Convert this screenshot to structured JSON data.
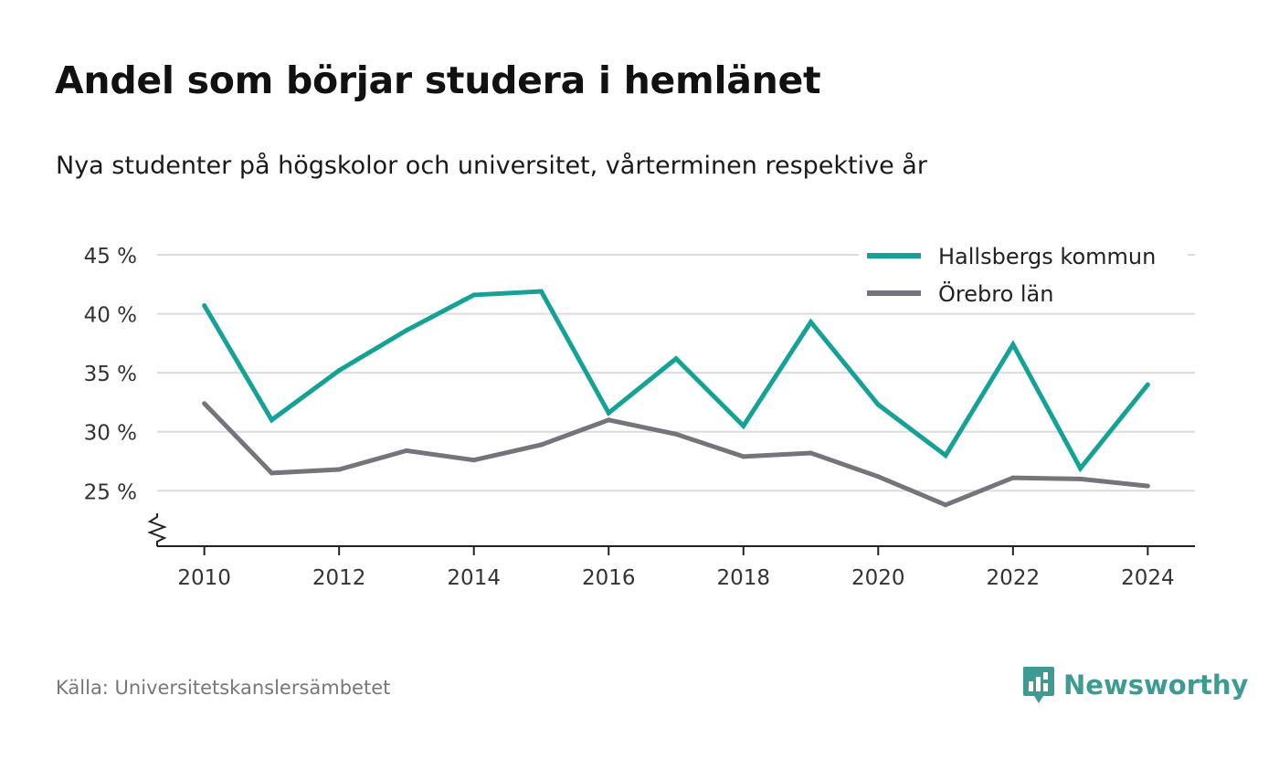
{
  "header": {
    "title": "Andel som börjar studera i hemlänet",
    "subtitle": "Nya studenter på högskolor och universitet, vårterminen respektive år"
  },
  "footer": {
    "source": "Källa: Universitetskanslersämbetet",
    "brand": "Newsworthy",
    "brand_icon": "newsworthy-logo-icon",
    "brand_color": "#3d9b93"
  },
  "chart_data": {
    "type": "line",
    "title": "Andel som börjar studera i hemlänet",
    "subtitle": "Nya studenter på högskolor och universitet, vårterminen respektive år",
    "xlabel": "",
    "ylabel": "",
    "x": [
      2010,
      2011,
      2012,
      2013,
      2014,
      2015,
      2016,
      2017,
      2018,
      2019,
      2020,
      2021,
      2022,
      2023,
      2024
    ],
    "xticks": [
      2010,
      2012,
      2014,
      2016,
      2018,
      2020,
      2022,
      2024
    ],
    "xtick_labels": [
      "2010",
      "2012",
      "2014",
      "2016",
      "2018",
      "2020",
      "2022",
      "2024"
    ],
    "yticks": [
      25,
      30,
      35,
      40,
      45
    ],
    "ytick_labels": [
      "25 %",
      "30 %",
      "35 %",
      "40 %",
      "45 %"
    ],
    "ylim": [
      20.3,
      45
    ],
    "xlim": [
      2009.3,
      2024.7
    ],
    "y_axis_break": true,
    "grid": true,
    "legend_position": "top-right",
    "series": [
      {
        "name": "Hallsbergs kommun",
        "color": "#14a296",
        "values": [
          40.7,
          31.0,
          35.2,
          38.6,
          41.6,
          41.9,
          31.6,
          36.2,
          30.5,
          39.3,
          32.3,
          28.0,
          37.4,
          26.9,
          34.0
        ]
      },
      {
        "name": "Örebro län",
        "color": "#75737c",
        "values": [
          32.4,
          26.5,
          26.8,
          28.4,
          27.6,
          28.9,
          31.0,
          29.8,
          27.9,
          28.2,
          26.2,
          23.8,
          26.1,
          26.0,
          25.4
        ]
      }
    ]
  }
}
